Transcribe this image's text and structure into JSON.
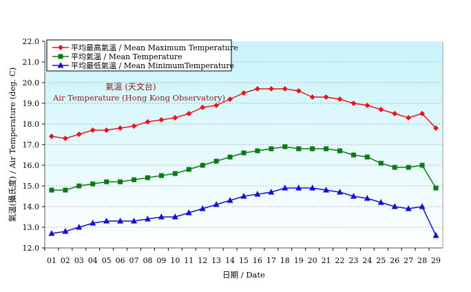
{
  "chart_data": {
    "type": "line",
    "title": "氣溫 (天文台)",
    "subtitle": "Air Temperature (Hong Kong Observatory)",
    "xlabel": "日期 / Date",
    "ylabel": "氣溫(攝氏度) / Air Temperature (deg. C)",
    "ylim": [
      12.0,
      22.0
    ],
    "yticks": [
      "12.0",
      "13.0",
      "14.0",
      "15.0",
      "16.0",
      "17.0",
      "18.0",
      "19.0",
      "20.0",
      "21.0",
      "22.0"
    ],
    "categories": [
      "01",
      "02",
      "03",
      "04",
      "05",
      "06",
      "07",
      "08",
      "09",
      "10",
      "11",
      "12",
      "13",
      "14",
      "15",
      "16",
      "17",
      "18",
      "19",
      "20",
      "21",
      "22",
      "23",
      "24",
      "25",
      "26",
      "27",
      "28",
      "29"
    ],
    "grid": true,
    "legend_placement": "top-left",
    "background": [
      "#c8f4fa",
      "#ffffff"
    ],
    "series": [
      {
        "name": "平均最高氣溫 / Mean Maximum Temperature",
        "color": "#e8141e",
        "marker": "diamond",
        "values": [
          17.4,
          17.3,
          17.5,
          17.7,
          17.7,
          17.8,
          17.9,
          18.1,
          18.2,
          18.3,
          18.5,
          18.8,
          18.9,
          19.2,
          19.5,
          19.7,
          19.7,
          19.7,
          19.6,
          19.3,
          19.3,
          19.2,
          19.0,
          18.9,
          18.7,
          18.5,
          18.3,
          18.5,
          17.8
        ]
      },
      {
        "name": "平均氣溫 / Mean Temperature",
        "color": "#0a7a14",
        "marker": "square",
        "values": [
          14.8,
          14.8,
          15.0,
          15.1,
          15.2,
          15.2,
          15.3,
          15.4,
          15.5,
          15.6,
          15.8,
          16.0,
          16.2,
          16.4,
          16.6,
          16.7,
          16.8,
          16.9,
          16.8,
          16.8,
          16.8,
          16.7,
          16.5,
          16.4,
          16.1,
          15.9,
          15.9,
          16.0,
          14.9
        ]
      },
      {
        "name": "平均最低氣溫 / Mean MinimumTemperature",
        "color": "#1010d0",
        "marker": "triangle",
        "values": [
          12.7,
          12.8,
          13.0,
          13.2,
          13.3,
          13.3,
          13.3,
          13.4,
          13.5,
          13.5,
          13.7,
          13.9,
          14.1,
          14.3,
          14.5,
          14.6,
          14.7,
          14.9,
          14.9,
          14.9,
          14.8,
          14.7,
          14.5,
          14.4,
          14.2,
          14.0,
          13.9,
          14.0,
          12.6
        ]
      }
    ]
  }
}
